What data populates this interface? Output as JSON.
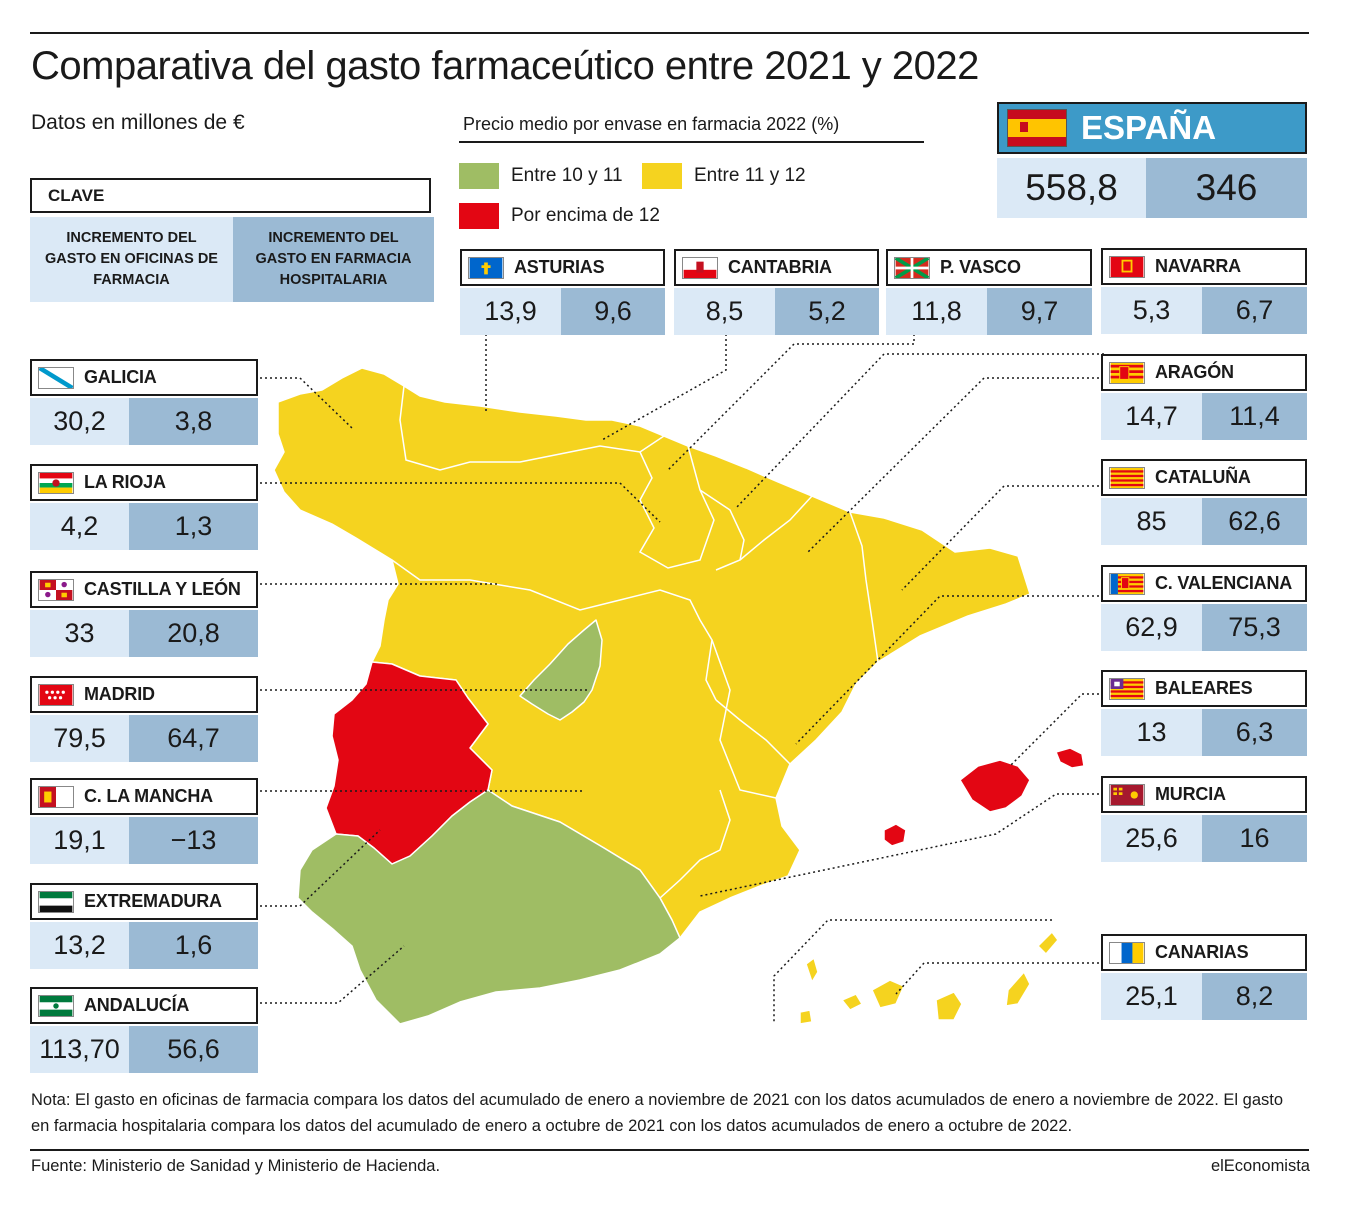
{
  "title": "Comparativa del gasto farmaceútico entre 2021 y 2022",
  "subtitle": "Datos en millones de €",
  "legend": {
    "title": "Precio medio por envase en farmacia 2022 (%)",
    "items": [
      {
        "label": "Entre 10 y 11",
        "color": "#9fbd64"
      },
      {
        "label": "Entre 11 y 12",
        "color": "#f5d31f"
      },
      {
        "label": "Por encima de 12",
        "color": "#e30613"
      }
    ]
  },
  "clave": {
    "title": "CLAVE",
    "col1": "INCREMENTO DEL GASTO EN OFICINAS DE FARMACIA",
    "col2": "INCREMENTO DEL GASTO EN FARMACIA HOSPITALARIA"
  },
  "espana": {
    "name": "ESPAÑA",
    "oficinas": "558,8",
    "hospitalaria": "346"
  },
  "regions": {
    "asturias": {
      "name": "ASTURIAS",
      "oficinas": "13,9",
      "hospitalaria": "9,6",
      "price_band": "Entre 11 y 12"
    },
    "cantabria": {
      "name": "CANTABRIA",
      "oficinas": "8,5",
      "hospitalaria": "5,2",
      "price_band": "Entre 11 y 12"
    },
    "pvasco": {
      "name": "P. VASCO",
      "oficinas": "11,8",
      "hospitalaria": "9,7",
      "price_band": "Entre 11 y 12"
    },
    "navarra": {
      "name": "NAVARRA",
      "oficinas": "5,3",
      "hospitalaria": "6,7",
      "price_band": "Entre 11 y 12"
    },
    "galicia": {
      "name": "GALICIA",
      "oficinas": "30,2",
      "hospitalaria": "3,8",
      "price_band": "Entre 11 y 12"
    },
    "larioja": {
      "name": "LA RIOJA",
      "oficinas": "4,2",
      "hospitalaria": "1,3",
      "price_band": "Entre 11 y 12"
    },
    "castillaleon": {
      "name": "CASTILLA Y LEÓN",
      "oficinas": "33",
      "hospitalaria": "20,8",
      "price_band": "Entre 11 y 12"
    },
    "madrid": {
      "name": "MADRID",
      "oficinas": "79,5",
      "hospitalaria": "64,7",
      "price_band": "Entre 10 y 11"
    },
    "clamancha": {
      "name": "C. LA MANCHA",
      "oficinas": "19,1",
      "hospitalaria": "−13",
      "price_band": "Entre 11 y 12"
    },
    "extremadura": {
      "name": "EXTREMADURA",
      "oficinas": "13,2",
      "hospitalaria": "1,6",
      "price_band": "Por encima de 12"
    },
    "andalucia": {
      "name": "ANDALUCÍA",
      "oficinas": "113,70",
      "hospitalaria": "56,6",
      "price_band": "Entre 10 y 11"
    },
    "aragon": {
      "name": "ARAGÓN",
      "oficinas": "14,7",
      "hospitalaria": "11,4",
      "price_band": "Entre 11 y 12"
    },
    "cataluna": {
      "name": "CATALUÑA",
      "oficinas": "85",
      "hospitalaria": "62,6",
      "price_band": "Entre 11 y 12"
    },
    "cvalenciana": {
      "name": "C. VALENCIANA",
      "oficinas": "62,9",
      "hospitalaria": "75,3",
      "price_band": "Entre 11 y 12"
    },
    "baleares": {
      "name": "BALEARES",
      "oficinas": "13",
      "hospitalaria": "6,3",
      "price_band": "Por encima de 12"
    },
    "murcia": {
      "name": "MURCIA",
      "oficinas": "25,6",
      "hospitalaria": "16",
      "price_band": "Entre 11 y 12"
    },
    "canarias": {
      "name": "CANARIAS",
      "oficinas": "25,1",
      "hospitalaria": "8,2",
      "price_band": "Entre 11 y 12"
    }
  },
  "note": "Nota: El gasto en oficinas de farmacia compara los datos del acumulado de enero a noviembre de 2021 con los datos acumulados de enero a noviembre de 2022. El gasto en farmacia hospitalaria compara los datos del acumulado de enero a octubre de 2021 con los datos acumulados de enero a octubre de 2022.",
  "source": "Fuente: Ministerio de Sanidad y Ministerio de Hacienda.",
  "brand": "elEconomista"
}
